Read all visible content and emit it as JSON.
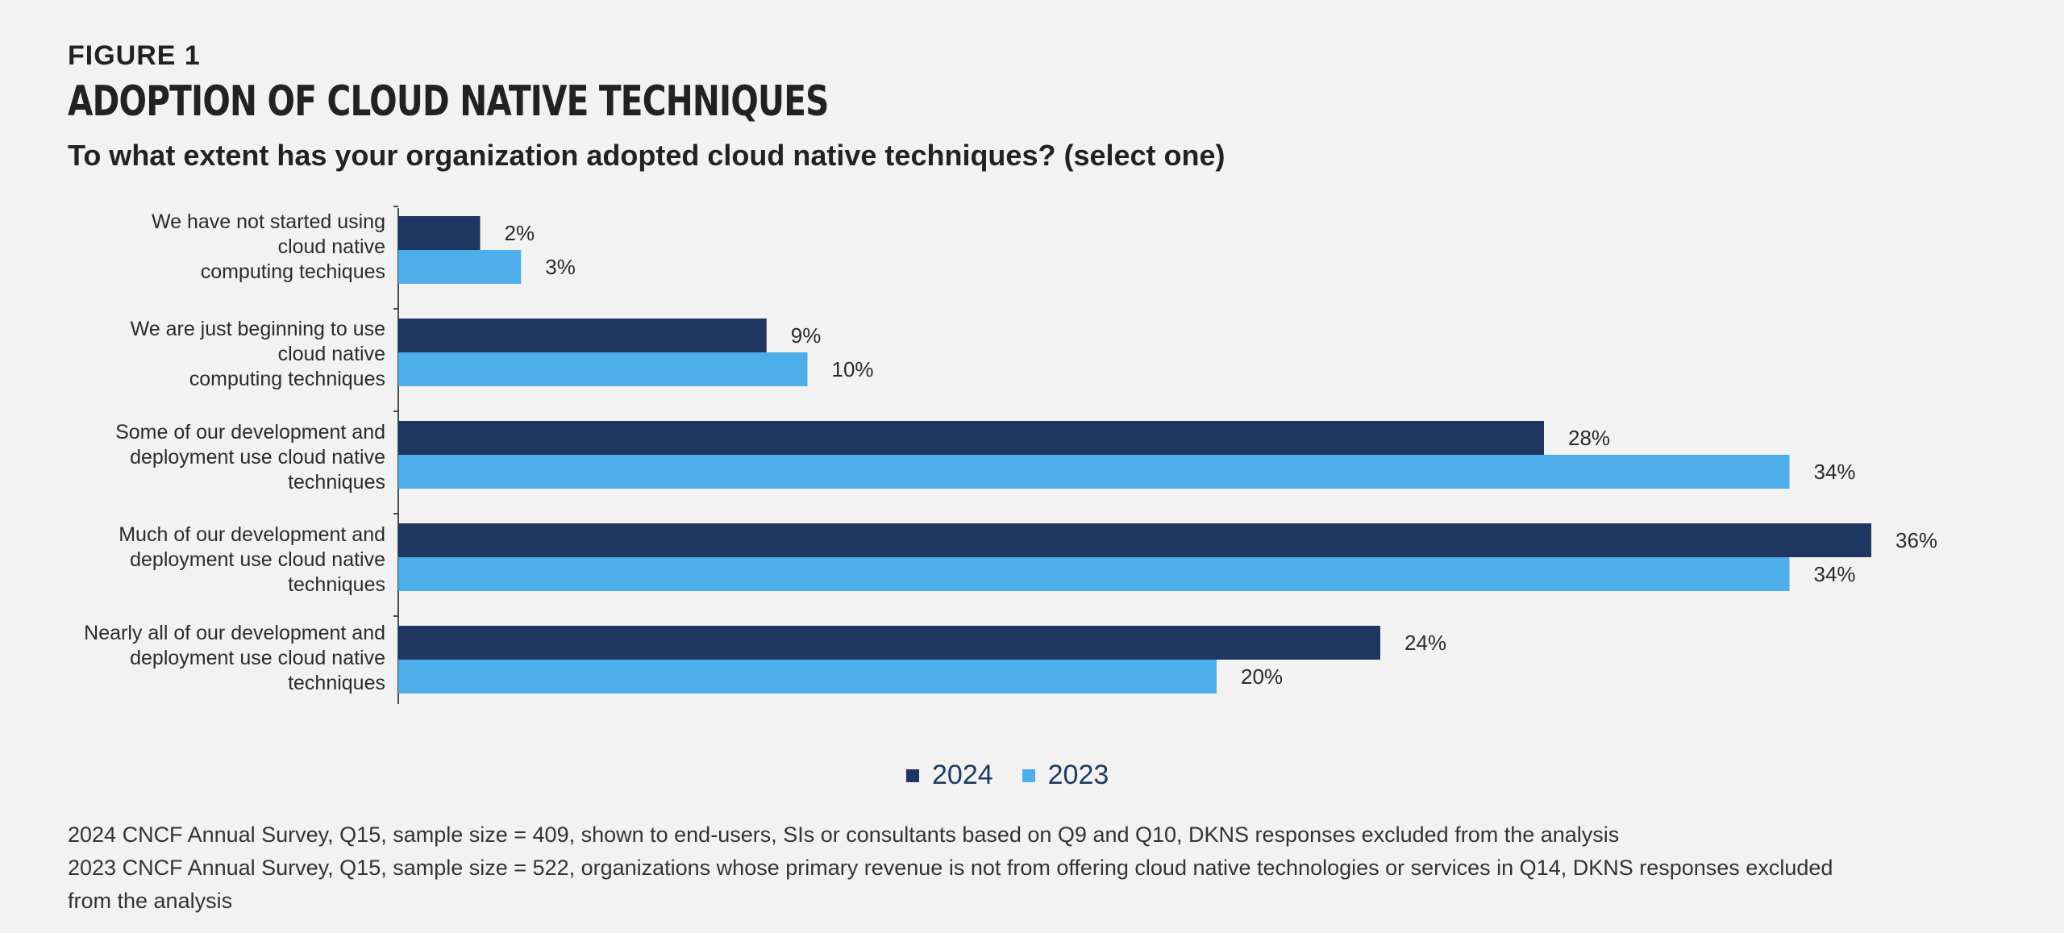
{
  "figure_label": "FIGURE 1",
  "title": "ADOPTION OF CLOUD NATIVE TECHNIQUES",
  "question": "To what extent has your organization adopted cloud native techniques? (select one)",
  "colors": {
    "series_2024": "#1f3760",
    "series_2023": "#4eaeea",
    "axis": "#4a4a4a"
  },
  "chart_data": {
    "type": "bar",
    "orientation": "horizontal",
    "categories": [
      [
        "We have not started using",
        "cloud native",
        "computing techiques"
      ],
      [
        "We are just beginning to use",
        "cloud native",
        "computing techniques"
      ],
      [
        "Some of our development and",
        "deployment use cloud native",
        "techniques"
      ],
      [
        "Much of our development and",
        "deployment use cloud native",
        "techniques"
      ],
      [
        "Nearly all of our development and",
        "deployment use cloud native",
        "techniques"
      ]
    ],
    "series": [
      {
        "name": "2024",
        "values": [
          2,
          9,
          28,
          36,
          24
        ],
        "labels": [
          "2%",
          "9%",
          "28%",
          "36%",
          "24%"
        ]
      },
      {
        "name": "2023",
        "values": [
          3,
          10,
          34,
          34,
          20
        ],
        "labels": [
          "3%",
          "10%",
          "34%",
          "34%",
          "20%"
        ]
      }
    ],
    "xlim": [
      0,
      36
    ],
    "legend_position": "bottom-center"
  },
  "legend": {
    "series_2024": "2024",
    "series_2023": "2023"
  },
  "footnotes": [
    "2024 CNCF Annual Survey, Q15, sample size = 409, shown to end-users, SIs or consultants based on Q9 and Q10, DKNS responses excluded from the analysis",
    "2023 CNCF Annual Survey, Q15, sample size = 522, organizations whose primary revenue is not from offering cloud native technologies or services in Q14, DKNS responses excluded from the analysis"
  ]
}
